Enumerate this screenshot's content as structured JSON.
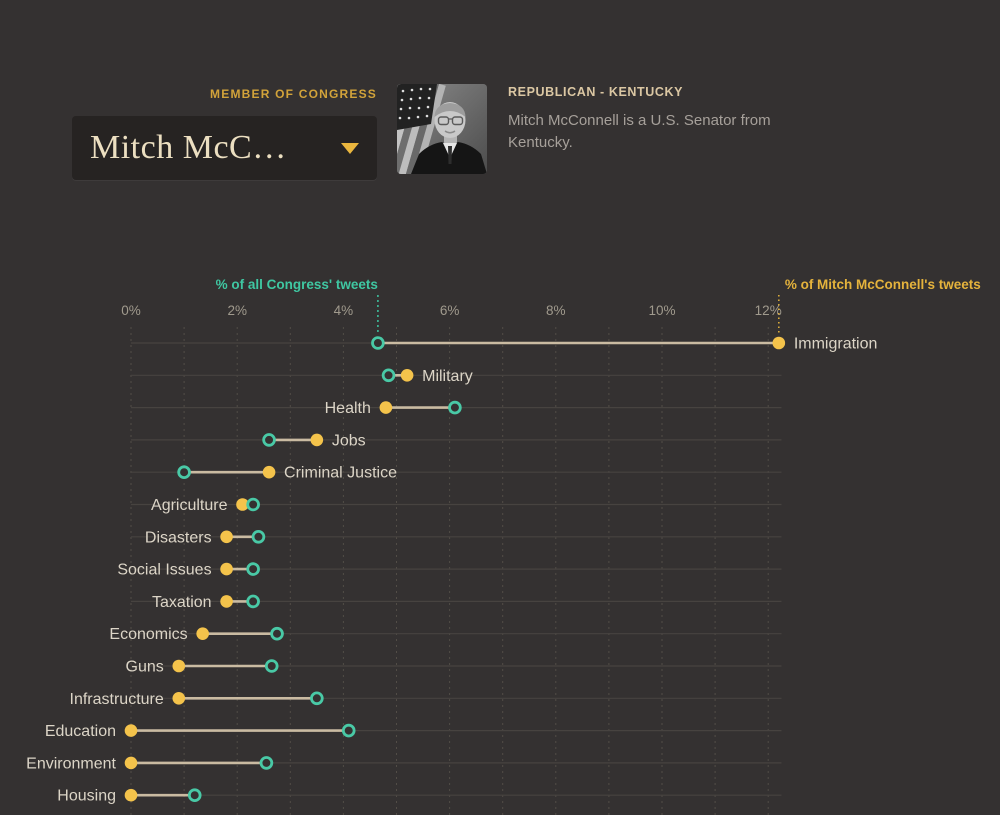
{
  "header": {
    "eyebrow": "MEMBER OF CONGRESS",
    "dropdown_value": "Mitch McC…",
    "party_state": "REPUBLICAN - KENTUCKY",
    "bio": "Mitch McConnell is a U.S. Senator from Kentucky."
  },
  "chart_data": {
    "type": "dumbbell",
    "title": "",
    "x_ticks": [
      "0%",
      "2%",
      "4%",
      "6%",
      "8%",
      "10%",
      "12%"
    ],
    "x_range": [
      0,
      12.25
    ],
    "x_gridline_interval_percent": 1,
    "grid": "vertical dashed gridlines every 1%, faint horizontal row lines",
    "legend_position": "top, anchored to first row markers",
    "categories": [
      "Immigration",
      "Military",
      "Health",
      "Jobs",
      "Criminal Justice",
      "Agriculture",
      "Disasters",
      "Social Issues",
      "Taxation",
      "Economics",
      "Guns",
      "Infrastructure",
      "Education",
      "Environment",
      "Housing"
    ],
    "series": [
      {
        "name": "% of all Congress' tweets",
        "key": "congress",
        "marker": "open-circle",
        "color": "#49c9a6",
        "values": [
          4.65,
          4.85,
          6.1,
          2.6,
          1.0,
          2.3,
          2.4,
          2.3,
          2.3,
          2.75,
          2.65,
          3.5,
          4.1,
          2.55,
          1.2
        ]
      },
      {
        "name": "% of Mitch McConnell's tweets",
        "key": "mcconnell",
        "marker": "filled-circle",
        "color": "#f4c34b",
        "values": [
          12.2,
          5.2,
          4.8,
          3.5,
          2.6,
          2.1,
          1.8,
          1.8,
          1.8,
          1.35,
          0.9,
          0.9,
          0.0,
          0.0,
          0.0
        ]
      }
    ]
  },
  "colors": {
    "background": "#343131",
    "teal_accent": "#49c9a6",
    "teal_text": "#3fc7a2",
    "yellow_accent": "#f4c34b",
    "yellow_text": "#e5b33c",
    "connector": "#cabba2",
    "row_line": "#474340",
    "gridline": "#524d47",
    "axis_text": "#a09a8d",
    "category_text": "#dcd5c7",
    "gold_label": "#d2a33a"
  }
}
